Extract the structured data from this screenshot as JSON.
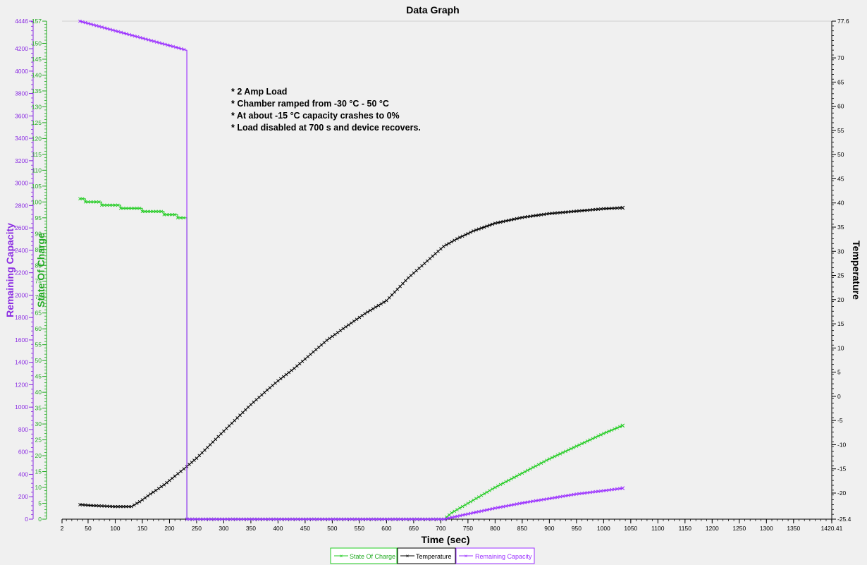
{
  "window_title": "Data Graph",
  "chart_data": {
    "type": "line",
    "title": "Data Graph",
    "xlabel": "Time (sec)",
    "xlim": [
      2,
      1420.41
    ],
    "x_ticks": [
      2,
      50,
      100,
      150,
      200,
      250,
      300,
      350,
      400,
      450,
      500,
      550,
      600,
      650,
      700,
      750,
      800,
      850,
      900,
      950,
      1000,
      1050,
      1100,
      1150,
      1200,
      1250,
      1300,
      1350,
      1420.41
    ],
    "axes": {
      "remaining_capacity": {
        "label": "Remaining Capacity",
        "color": "#8a2be2",
        "range": [
          0,
          4446
        ],
        "ticks": [
          0,
          200,
          400,
          600,
          800,
          1000,
          1200,
          1400,
          1600,
          1800,
          2000,
          2200,
          2400,
          2600,
          2800,
          3000,
          3200,
          3400,
          3600,
          3800,
          4000,
          4200,
          4446
        ]
      },
      "state_of_charge": {
        "label": "State Of Charge",
        "color": "#22aa22",
        "range": [
          0,
          157
        ],
        "ticks": [
          0,
          5,
          10,
          15,
          20,
          25,
          30,
          35,
          40,
          45,
          50,
          55,
          60,
          65,
          70,
          75,
          80,
          85,
          90,
          95,
          100,
          105,
          110,
          115,
          120,
          125,
          130,
          135,
          140,
          145,
          150,
          157
        ]
      },
      "temperature": {
        "label": "Temperature",
        "color": "#000000",
        "range": [
          -25.4,
          77.6
        ],
        "ticks": [
          -25.4,
          -20,
          -15,
          -10,
          -5,
          0,
          5,
          10,
          15,
          20,
          25,
          30,
          35,
          40,
          45,
          50,
          55,
          60,
          65,
          70,
          77.6
        ]
      }
    },
    "series": [
      {
        "name": "State Of Charge",
        "axis": "state_of_charge",
        "color": "#22cc22",
        "points": [
          [
            35,
            101
          ],
          [
            45,
            101
          ],
          [
            45,
            100
          ],
          [
            75,
            100
          ],
          [
            75,
            99
          ],
          [
            110,
            99
          ],
          [
            110,
            98
          ],
          [
            150,
            98
          ],
          [
            150,
            97
          ],
          [
            190,
            97
          ],
          [
            190,
            96
          ],
          [
            215,
            96
          ],
          [
            215,
            95
          ],
          [
            232,
            95
          ],
          [
            232,
            0
          ],
          [
            706,
            0
          ],
          [
            720,
            2
          ],
          [
            760,
            6
          ],
          [
            800,
            10
          ],
          [
            850,
            14.5
          ],
          [
            900,
            19
          ],
          [
            950,
            23
          ],
          [
            1000,
            27
          ],
          [
            1035,
            29.5
          ]
        ]
      },
      {
        "name": "Temperature",
        "axis": "temperature",
        "color": "#000000",
        "points": [
          [
            35,
            -22.4
          ],
          [
            60,
            -22.6
          ],
          [
            100,
            -22.8
          ],
          [
            130,
            -22.8
          ],
          [
            145,
            -21.8
          ],
          [
            165,
            -20.2
          ],
          [
            190,
            -18.3
          ],
          [
            210,
            -16.5
          ],
          [
            232,
            -14.5
          ],
          [
            250,
            -12.8
          ],
          [
            275,
            -10
          ],
          [
            300,
            -7.2
          ],
          [
            320,
            -5
          ],
          [
            350,
            -1.7
          ],
          [
            380,
            1.3
          ],
          [
            400,
            3.2
          ],
          [
            430,
            5.8
          ],
          [
            460,
            8.7
          ],
          [
            490,
            11.6
          ],
          [
            520,
            14
          ],
          [
            560,
            17.1
          ],
          [
            600,
            19.8
          ],
          [
            640,
            24.5
          ],
          [
            680,
            28.5
          ],
          [
            705,
            31
          ],
          [
            730,
            32.6
          ],
          [
            760,
            34.2
          ],
          [
            800,
            35.8
          ],
          [
            850,
            37
          ],
          [
            900,
            37.8
          ],
          [
            950,
            38.3
          ],
          [
            1000,
            38.8
          ],
          [
            1035,
            39
          ]
        ]
      },
      {
        "name": "Remaining Capacity",
        "axis": "remaining_capacity",
        "color": "#9b30ff",
        "points": [
          [
            35,
            4446
          ],
          [
            232,
            4186
          ],
          [
            232,
            0
          ],
          [
            706,
            0
          ],
          [
            760,
            57
          ],
          [
            800,
            98
          ],
          [
            850,
            144
          ],
          [
            900,
            184
          ],
          [
            950,
            224
          ],
          [
            1000,
            254
          ],
          [
            1035,
            276
          ]
        ]
      }
    ],
    "annotations": [
      "* 2 Amp Load",
      "* Chamber ramped from -30 °C - 50 °C",
      "* At about -15 °C capacity crashes to 0%",
      "* Load disabled at 700 s and device recovers."
    ],
    "legend": {
      "placement": "bottom",
      "entries": [
        "State Of Charge",
        "Temperature",
        "Remaining Capacity"
      ]
    },
    "grid": false
  }
}
